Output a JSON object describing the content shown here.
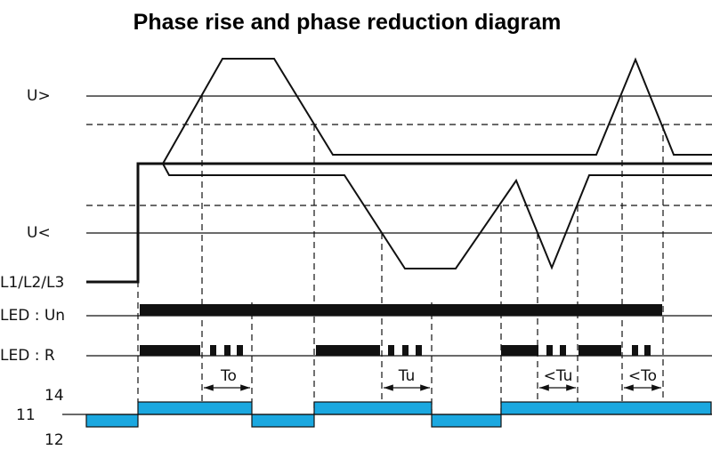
{
  "title": "Phase rise and phase reduction diagram",
  "labels": {
    "upper_threshold": "U>",
    "lower_threshold": "U<",
    "phases": "L1/L2/L3",
    "led_un": "LED : Un",
    "led_r": "LED : R",
    "contact_14": "14",
    "contact_11": "11",
    "contact_12": "12"
  },
  "timings": [
    {
      "label": "To"
    },
    {
      "label": "Tu"
    },
    {
      "label": "<Tu"
    },
    {
      "label": "<To"
    }
  ],
  "colors": {
    "relay": "#1ba8e0",
    "ink": "#111111"
  }
}
